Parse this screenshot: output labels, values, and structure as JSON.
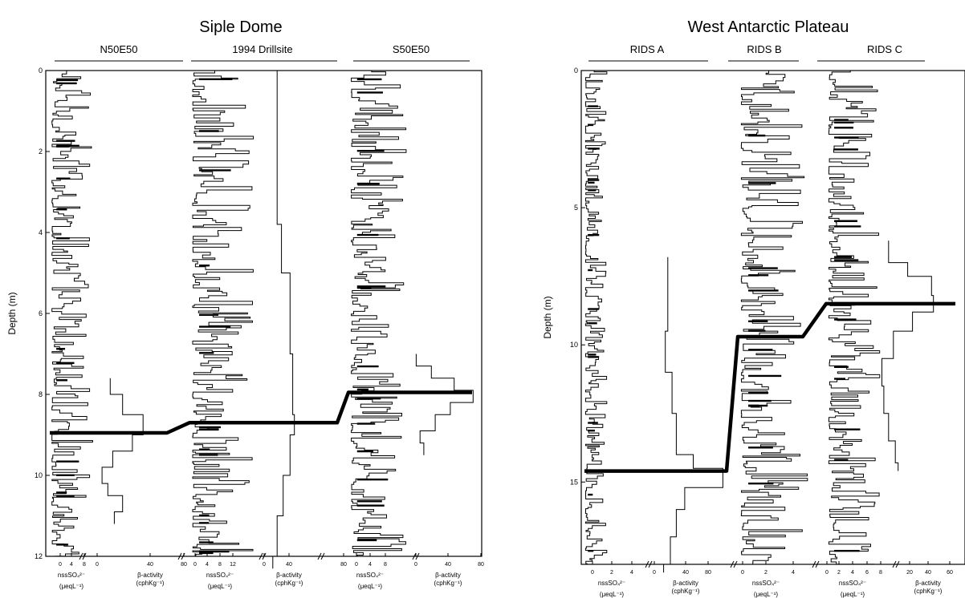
{
  "chart_data": [
    {
      "type": "line",
      "title": "Siple Dome",
      "ylabel": "Depth (m)",
      "ylim": [
        0,
        12
      ],
      "y_ticks": [
        "0",
        "2",
        "4",
        "6",
        "8",
        "10",
        "12"
      ],
      "y_tick_values": [
        0,
        2,
        4,
        6,
        8,
        10,
        12
      ],
      "sites": [
        {
          "name": "N50E50",
          "nss_ticks": [
            "0",
            "4",
            "8"
          ],
          "beta_ticks": [
            "0",
            "40",
            "80"
          ],
          "nss_label": [
            "nssSO₄²⁻",
            "(μeqL⁻¹)"
          ],
          "beta_label": [
            "β-activity",
            "(cphKg⁻¹)"
          ],
          "beta_profile": {
            "depth": [
              7.6,
              8.0,
              8.5,
              9.0,
              9.4,
              9.8,
              10.2,
              10.5,
              10.9
            ],
            "value": [
              15,
              30,
              55,
              42,
              18,
              5,
              12,
              30,
              20
            ]
          },
          "marker_depth": 8.95
        },
        {
          "name": "1994 Drillsite",
          "nss_ticks": [
            "0",
            "4",
            "8",
            "12"
          ],
          "beta_ticks": [
            "0",
            "40",
            "80"
          ],
          "nss_label": [
            "nssSO₄²⁻",
            "(μeqL⁻¹)"
          ],
          "beta_label": [
            "β-activity",
            "(cphKg⁻¹)"
          ],
          "beta_profile": {
            "depth": [
              0.0,
              2.0,
              3.8,
              5.0,
              7.0,
              8.5,
              9.0,
              10.0,
              11.0,
              12.0
            ],
            "value": [
              15,
              15,
              20,
              30,
              33,
              35,
              30,
              22,
              15,
              10
            ]
          },
          "marker_depth": 8.7
        },
        {
          "name": "S50E50",
          "nss_ticks": [
            "0",
            "4",
            "8"
          ],
          "beta_ticks": [
            "0",
            "40",
            "80"
          ],
          "nss_label": [
            "nssSO₄²⁻",
            "(μeqL⁻¹)"
          ],
          "beta_label": [
            "β-activity",
            "(cphKg⁻¹)"
          ],
          "beta_profile": {
            "depth": [
              7.0,
              7.3,
              7.6,
              7.9,
              8.2,
              8.5,
              8.9,
              9.2
            ],
            "value": [
              10,
              30,
              60,
              85,
              55,
              35,
              15,
              20
            ]
          },
          "marker_depth": 7.95
        }
      ]
    },
    {
      "type": "line",
      "title": "West Antarctic Plateau",
      "ylabel": "Depth (m)",
      "ylim": [
        0,
        18
      ],
      "y_ticks": [
        "0",
        "5",
        "10",
        "15"
      ],
      "y_tick_values": [
        0,
        5,
        10,
        15
      ],
      "sites": [
        {
          "name": "RIDS A",
          "nss_ticks": [
            "0",
            "2",
            "4"
          ],
          "beta_ticks": [
            "0",
            "40",
            "80"
          ],
          "nss_label": [
            "nssSO₄²⁻",
            "(μeqL⁻¹)"
          ],
          "beta_label": [
            "β-activity",
            "(cphKg⁻¹)"
          ],
          "beta_profile": {
            "depth": [
              6.8,
              8.0,
              9.5,
              11.0,
              12.5,
              14.0,
              14.5,
              15.2,
              16.0,
              17.0,
              18.0
            ],
            "value": [
              15,
              15,
              12,
              20,
              25,
              45,
              80,
              35,
              25,
              18,
              10
            ]
          },
          "marker_depth": 14.6
        },
        {
          "name": "RIDS B",
          "nss_ticks": [
            "0",
            "2",
            "4"
          ],
          "beta_ticks": [],
          "nss_label": [
            "nssSO₄²⁻",
            "(μeqL⁻¹)"
          ],
          "beta_label": [],
          "beta_profile": null,
          "marker_depth": 9.7
        },
        {
          "name": "RIDS C",
          "nss_ticks": [
            "0",
            "2",
            "4",
            "6",
            "8"
          ],
          "beta_ticks": [
            "20",
            "40",
            "60"
          ],
          "nss_label": [
            "nssSO₄²⁻",
            "(μeqL⁻¹)"
          ],
          "beta_label": [
            "β-activity",
            "(cphKg⁻¹)"
          ],
          "beta_profile": {
            "depth": [
              6.2,
              7.0,
              7.5,
              8.2,
              8.8,
              9.5,
              10.5,
              11.5,
              12.5,
              13.5,
              14.3
            ],
            "value": [
              15,
              35,
              60,
              62,
              40,
              20,
              8,
              10,
              15,
              22,
              25
            ]
          },
          "marker_depth": 8.5
        }
      ]
    }
  ]
}
